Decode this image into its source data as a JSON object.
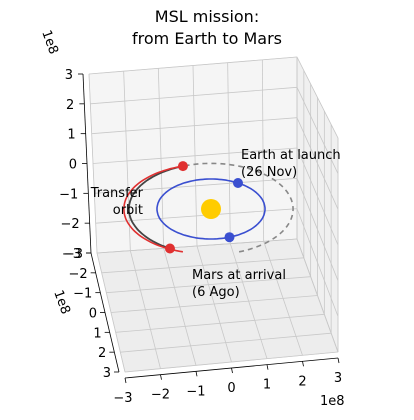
{
  "chart_data": {
    "type": "line3d",
    "title": [
      "MSL mission:",
      "from Earth to Mars"
    ],
    "axes": {
      "x": {
        "ticks": [
          -3,
          -2,
          -1,
          0,
          1,
          2,
          3
        ],
        "tick_labels": [
          "−3",
          "−2",
          "−1",
          "0",
          "1",
          "2",
          "3"
        ],
        "offset_label": "1e8",
        "lim": [
          -3,
          3
        ]
      },
      "y": {
        "ticks": [
          -3,
          -2,
          -1,
          0,
          1,
          2,
          3
        ],
        "tick_labels": [
          "−3",
          "−2",
          "−1",
          "0",
          "1",
          "2",
          "3"
        ],
        "offset_label": "1e8",
        "lim": [
          -3,
          3
        ]
      },
      "z": {
        "ticks": [
          -3,
          -2,
          -1,
          0,
          1,
          2,
          3
        ],
        "tick_labels": [
          "−3",
          "−2",
          "−1",
          "0",
          "1",
          "2",
          "3"
        ],
        "offset_label": "1e8",
        "lim": [
          -3,
          3
        ]
      },
      "grid": true
    },
    "sun": {
      "x": 0,
      "y": 0,
      "z": 0,
      "color": "#ffcc00"
    },
    "earth_orbit": {
      "radius": 1.5,
      "color": "#3a4fd0"
    },
    "mars_orbit": {
      "radius": 2.28,
      "color_past": "#444444",
      "color_future": "#888888"
    },
    "transfer_orbit": {
      "color": "#e03030"
    },
    "markers": [
      {
        "name": "earth-launch",
        "angle_deg": 60,
        "orbit": "earth",
        "color": "#3a4fd0"
      },
      {
        "name": "earth-arrival",
        "angle_deg": -70,
        "orbit": "earth",
        "color": "#3a4fd0"
      },
      {
        "name": "mars-launch",
        "angle_deg": 110,
        "orbit": "mars",
        "color": "#e03030"
      },
      {
        "name": "mars-arrival",
        "angle_deg": 240,
        "orbit": "mars",
        "color": "#e03030"
      }
    ],
    "annotations": {
      "earth": [
        "Earth at launch",
        "(26 Nov)"
      ],
      "mars": [
        "Mars at arrival",
        "(6 Ago)"
      ],
      "transfer": [
        "Transfer",
        "orbit"
      ]
    }
  }
}
